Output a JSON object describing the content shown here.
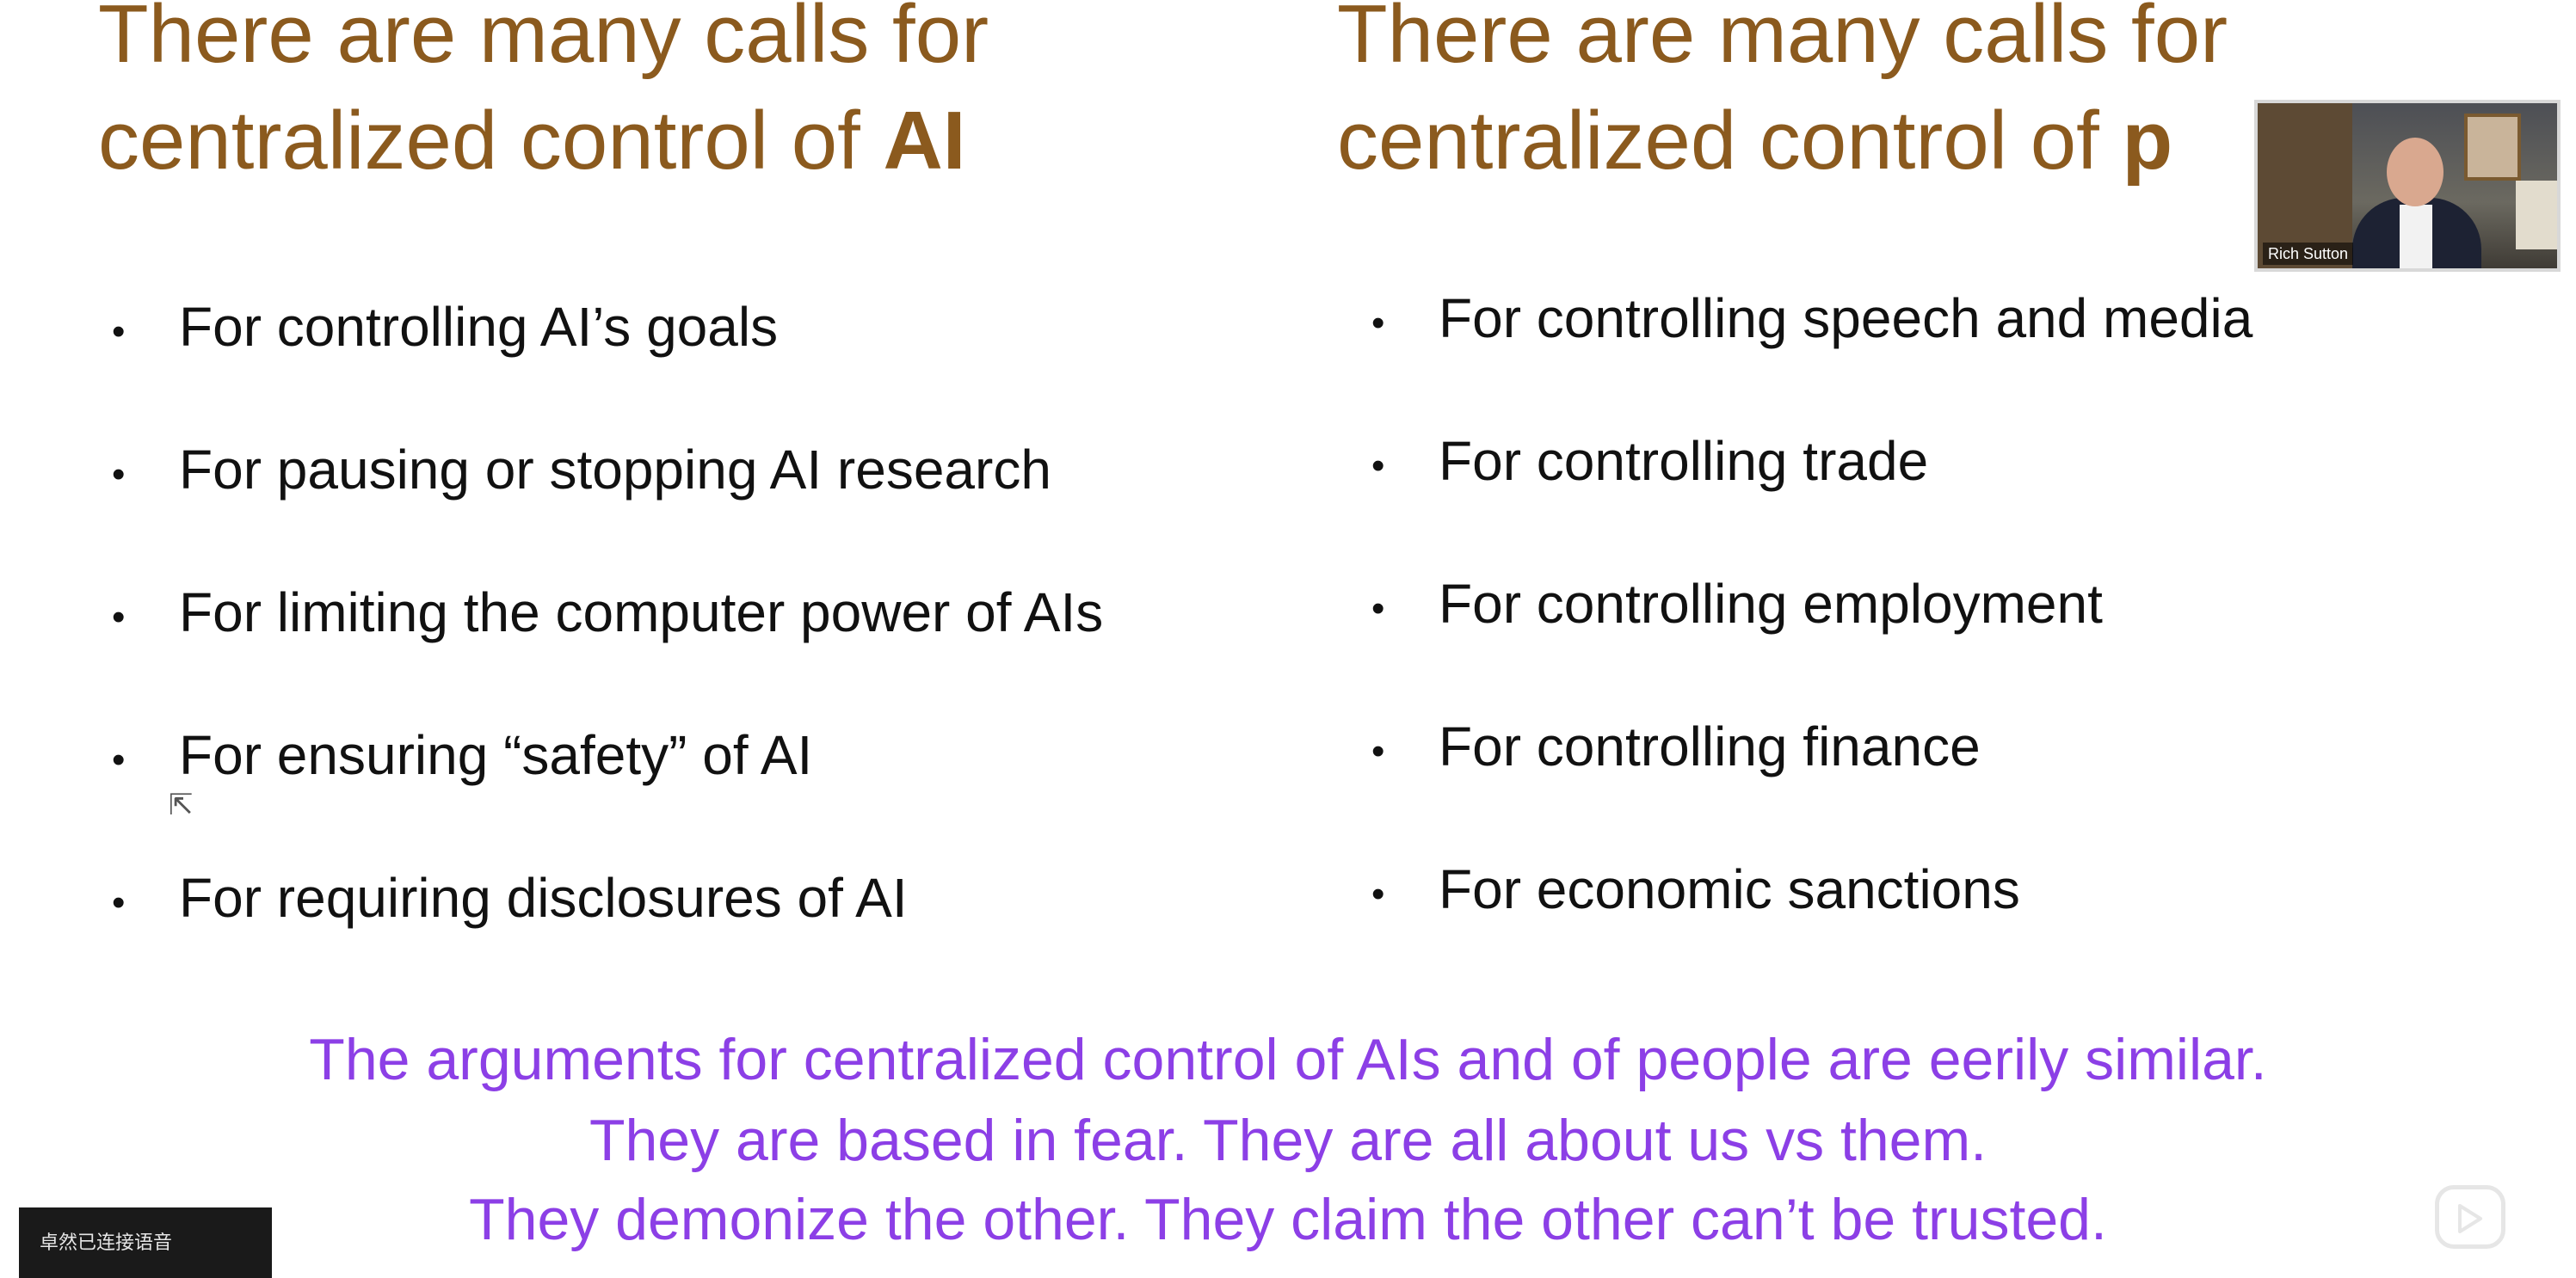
{
  "slide": {
    "left": {
      "heading_line1": "There are many calls for",
      "heading_line2_prefix": "centralized control of ",
      "heading_emphasis": "AI",
      "items": [
        "For controlling AI’s goals",
        "For pausing or stopping AI research",
        "For limiting the computer power of AIs",
        "For ensuring “safety” of AI",
        "For requiring disclosures of AI"
      ]
    },
    "right": {
      "heading_line1": "There are many calls for",
      "heading_line2_prefix": "centralized control of ",
      "heading_emphasis": "p",
      "items": [
        "For controlling speech and media",
        "For controlling trade",
        "For controlling employment",
        "For controlling finance",
        "For economic sanctions"
      ]
    },
    "conclusion": [
      "The arguments for centralized control of AIs and of people are eerily similar.",
      "They are based in fear. They are all about us vs them.",
      "They demonize the other. They claim the other can’t be trusted."
    ],
    "bullet": "•"
  },
  "video": {
    "speaker_label": "Rich Sutton"
  },
  "bottom_panel": {
    "label": "卓然已连接语音"
  },
  "colors": {
    "heading": "#8B5A1E",
    "conclusion": "#8C3FE6",
    "body_text": "#111111"
  },
  "icons": {
    "play": "play-icon",
    "cursor": "cursor-icon"
  }
}
